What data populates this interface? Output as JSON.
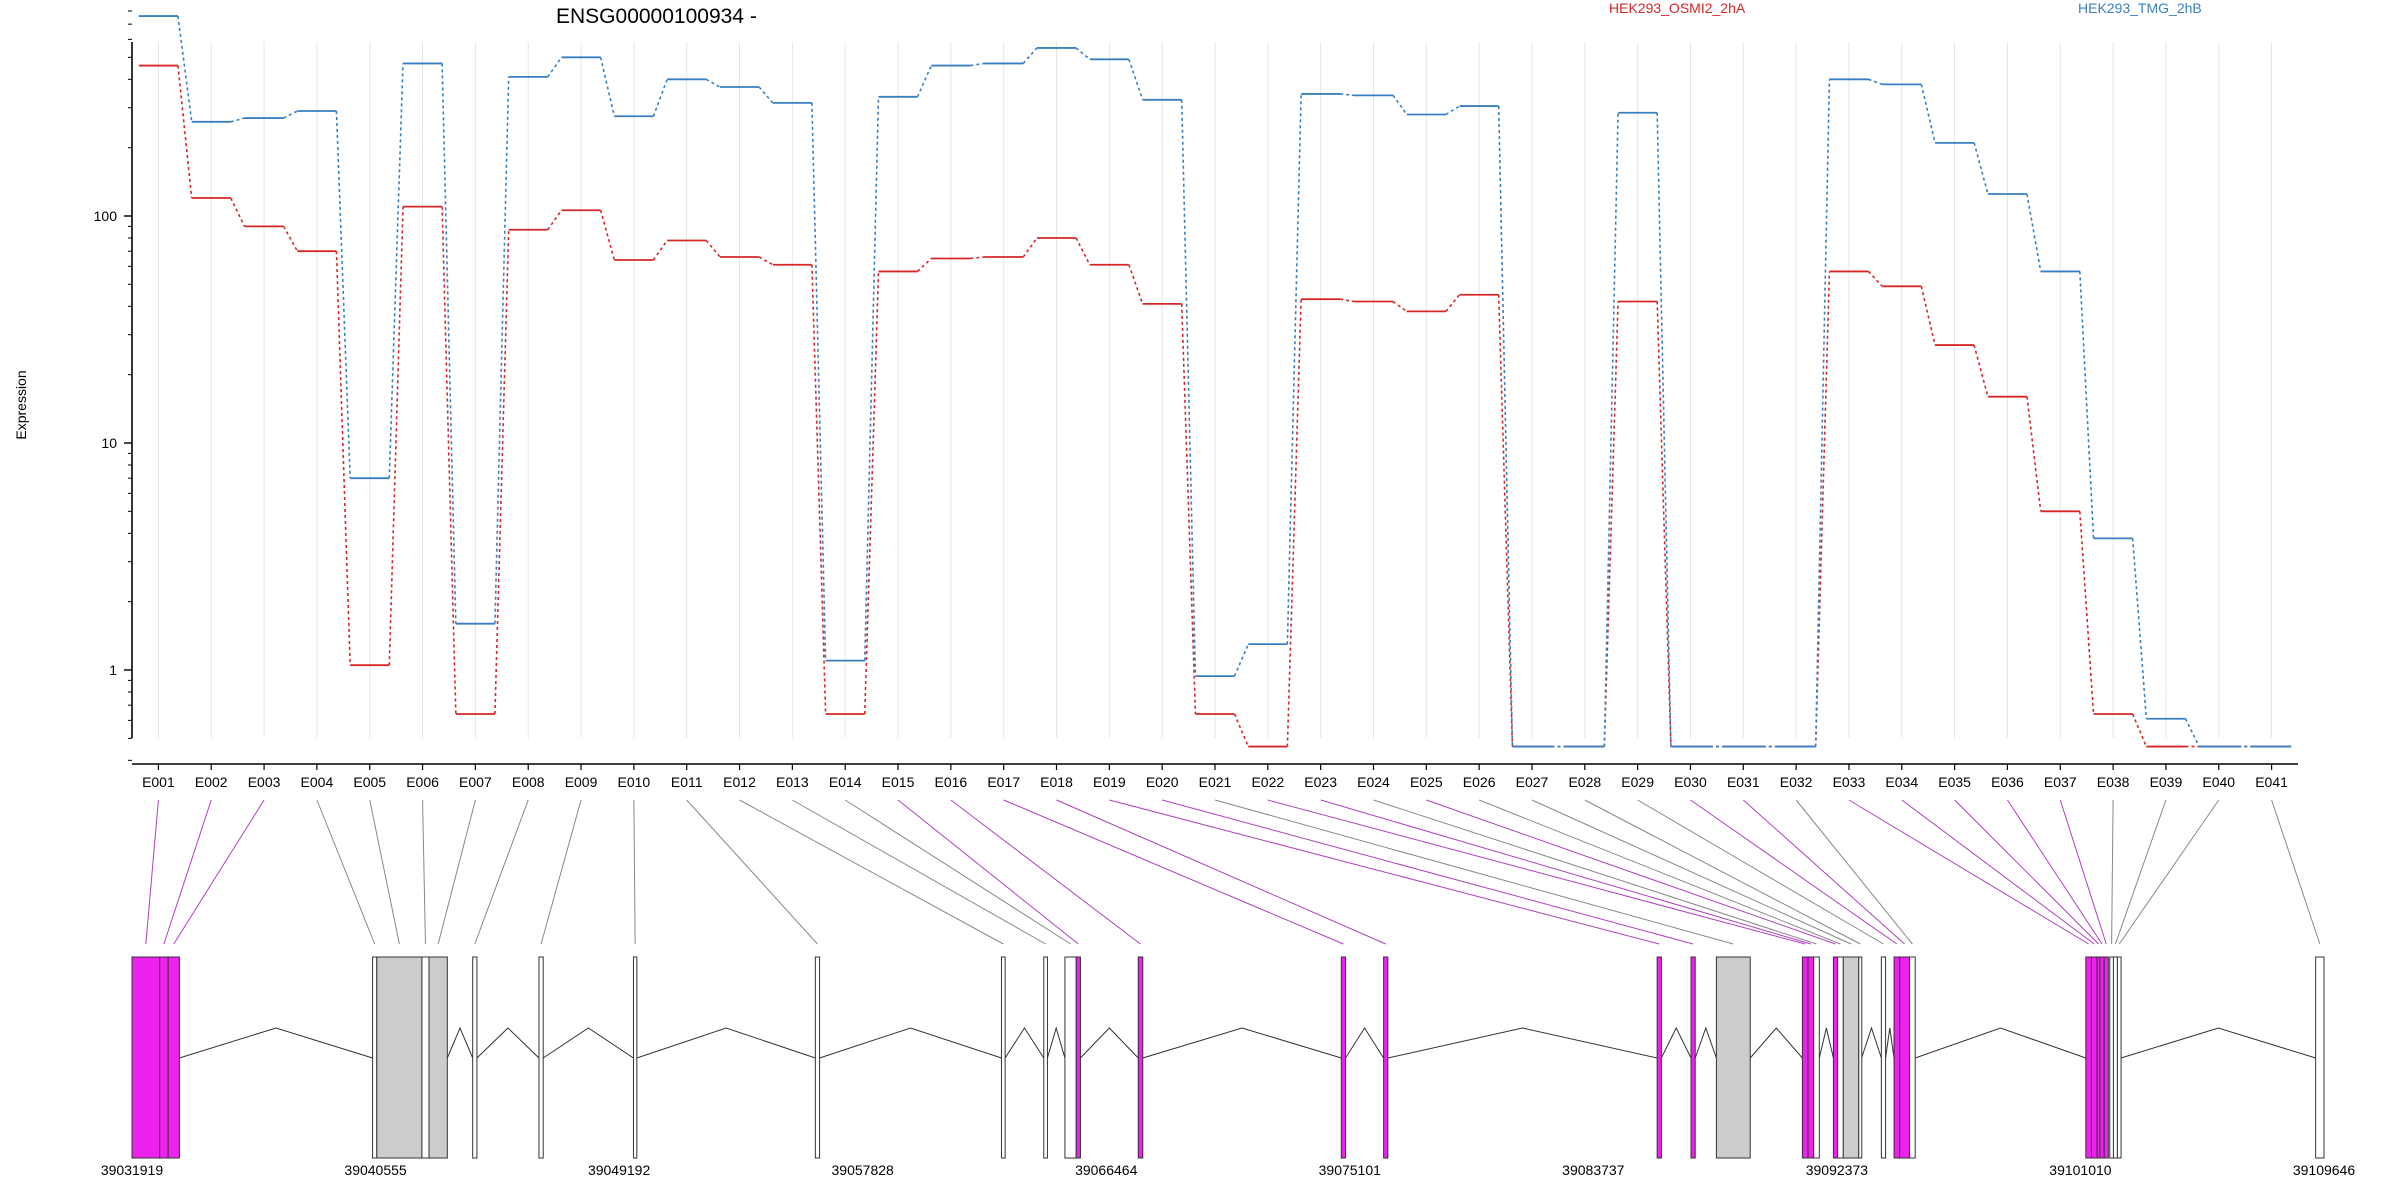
{
  "chart_data": {
    "type": "line",
    "title": "ENSG00000100934 -",
    "ylabel": "Expression",
    "y_scale": "log",
    "y_ticks": [
      "1",
      "10",
      "100"
    ],
    "grid": true,
    "legend_position": "top",
    "categories": [
      "E001",
      "E002",
      "E003",
      "E004",
      "E005",
      "E006",
      "E007",
      "E008",
      "E009",
      "E010",
      "E011",
      "E012",
      "E013",
      "E014",
      "E015",
      "E016",
      "E017",
      "E018",
      "E019",
      "E020",
      "E021",
      "E022",
      "E023",
      "E024",
      "E025",
      "E026",
      "E027",
      "E028",
      "E029",
      "E030",
      "E031",
      "E032",
      "E033",
      "E034",
      "E035",
      "E036",
      "E037",
      "E038",
      "E039",
      "E040",
      "E041"
    ],
    "series": [
      {
        "name": "HEK293_OSMI2_2hA",
        "color": "#d62728",
        "values": [
          460,
          120,
          90,
          70,
          1.05,
          110,
          0.64,
          87,
          106,
          64,
          78,
          66,
          61,
          0.64,
          57,
          65,
          66,
          80,
          61,
          41,
          0.64,
          0.46,
          43,
          42,
          38,
          45,
          0.46,
          0.46,
          42,
          0.46,
          0.46,
          0.46,
          57,
          49,
          27,
          16,
          5,
          0.64,
          0.46,
          0.46,
          0.46
        ]
      },
      {
        "name": "HEK293_TMG_2hB",
        "color": "#3a7fc0",
        "values": [
          760,
          260,
          270,
          290,
          7,
          470,
          1.6,
          410,
          500,
          275,
          400,
          370,
          315,
          1.1,
          335,
          460,
          470,
          550,
          490,
          325,
          0.94,
          1.3,
          345,
          340,
          280,
          305,
          0.46,
          0.46,
          285,
          0.46,
          0.46,
          0.46,
          400,
          380,
          210,
          125,
          57,
          3.8,
          0.61,
          0.46,
          0.46
        ]
      }
    ],
    "gene_model": {
      "coordinate_labels": [
        "39031919",
        "39040555",
        "39049192",
        "39057828",
        "39066464",
        "39075101",
        "39083737",
        "39092373",
        "39101010",
        "39109646"
      ],
      "highlight_color": "#ee22ee",
      "exons": [
        {
          "id": "E001",
          "start": 39031919,
          "end": 39032900,
          "sig": true
        },
        {
          "id": "E002",
          "start": 39032900,
          "end": 39033200,
          "sig": true
        },
        {
          "id": "E003",
          "start": 39033200,
          "end": 39033600,
          "sig": true
        },
        {
          "id": "E004",
          "start": 39040450,
          "end": 39040600,
          "sig": false
        },
        {
          "id": "E005",
          "start": 39040600,
          "end": 39042200,
          "sig": false
        },
        {
          "id": "E006",
          "start": 39042200,
          "end": 39042450,
          "sig": false
        },
        {
          "id": "E007",
          "start": 39042450,
          "end": 39043100,
          "sig": false
        },
        {
          "id": "E008",
          "start": 39044000,
          "end": 39044150,
          "sig": false
        },
        {
          "id": "E009",
          "start": 39046350,
          "end": 39046500,
          "sig": false
        },
        {
          "id": "E010",
          "start": 39049700,
          "end": 39049820,
          "sig": false
        },
        {
          "id": "E011",
          "start": 39056150,
          "end": 39056300,
          "sig": false
        },
        {
          "id": "E012",
          "start": 39062750,
          "end": 39062880,
          "sig": false
        },
        {
          "id": "E013",
          "start": 39064250,
          "end": 39064380,
          "sig": false
        },
        {
          "id": "E014",
          "start": 39065000,
          "end": 39065400,
          "sig": false
        },
        {
          "id": "E015",
          "start": 39065400,
          "end": 39065550,
          "sig": true
        },
        {
          "id": "E016",
          "start": 39067600,
          "end": 39067760,
          "sig": true
        },
        {
          "id": "E017",
          "start": 39074800,
          "end": 39074950,
          "sig": true
        },
        {
          "id": "E018",
          "start": 39076300,
          "end": 39076450,
          "sig": true
        },
        {
          "id": "E019",
          "start": 39086000,
          "end": 39086150,
          "sig": true
        },
        {
          "id": "E020",
          "start": 39087200,
          "end": 39087350,
          "sig": true
        },
        {
          "id": "E021",
          "start": 39088100,
          "end": 39089300,
          "sig": false
        },
        {
          "id": "E022",
          "start": 39091150,
          "end": 39091350,
          "sig": true
        },
        {
          "id": "E023",
          "start": 39091350,
          "end": 39091550,
          "sig": true
        },
        {
          "id": "E024",
          "start": 39091550,
          "end": 39091750,
          "sig": false
        },
        {
          "id": "E025",
          "start": 39092250,
          "end": 39092400,
          "sig": true
        },
        {
          "id": "E026",
          "start": 39092400,
          "end": 39092600,
          "sig": false
        },
        {
          "id": "E027",
          "start": 39092600,
          "end": 39093150,
          "sig": false
        },
        {
          "id": "E028",
          "start": 39093150,
          "end": 39093250,
          "sig": false
        },
        {
          "id": "E029",
          "start": 39093950,
          "end": 39094100,
          "sig": false
        },
        {
          "id": "E030",
          "start": 39094400,
          "end": 39094600,
          "sig": true
        },
        {
          "id": "E031",
          "start": 39094600,
          "end": 39094950,
          "sig": true
        },
        {
          "id": "E032",
          "start": 39094950,
          "end": 39095150,
          "sig": false
        },
        {
          "id": "E033",
          "start": 39101200,
          "end": 39101400,
          "sig": true
        },
        {
          "id": "E034",
          "start": 39101400,
          "end": 39101600,
          "sig": true
        },
        {
          "id": "E035",
          "start": 39101600,
          "end": 39101700,
          "sig": true
        },
        {
          "id": "E036",
          "start": 39101700,
          "end": 39101850,
          "sig": true
        },
        {
          "id": "E037",
          "start": 39101850,
          "end": 39102000,
          "sig": true
        },
        {
          "id": "E038",
          "start": 39102050,
          "end": 39102180,
          "sig": false
        },
        {
          "id": "E039",
          "start": 39102180,
          "end": 39102320,
          "sig": false
        },
        {
          "id": "E040",
          "start": 39102320,
          "end": 39102450,
          "sig": false
        },
        {
          "id": "E041",
          "start": 39109350,
          "end": 39109646,
          "sig": false
        }
      ]
    }
  }
}
